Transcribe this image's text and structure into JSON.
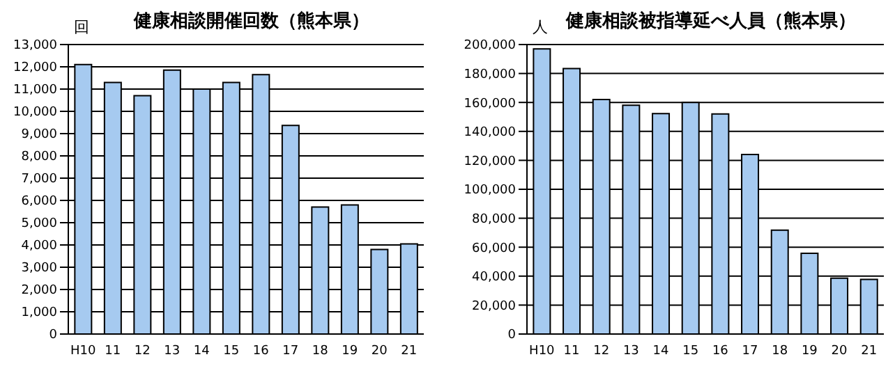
{
  "chart_data": [
    {
      "type": "bar",
      "title": "健康相談開催回数（熊本県）",
      "ylabel": "回",
      "categories": [
        "H10",
        "11",
        "12",
        "13",
        "14",
        "15",
        "16",
        "17",
        "18",
        "19",
        "20",
        "21"
      ],
      "values": [
        12100,
        11300,
        10700,
        11850,
        11000,
        11300,
        11650,
        9370,
        5700,
        5800,
        3800,
        4050
      ],
      "color": "#a6caf0",
      "ylim": [
        0,
        13000
      ],
      "yticks": [
        {
          "value": 0,
          "label": "0"
        },
        {
          "value": 1000,
          "label": "1,000"
        },
        {
          "value": 2000,
          "label": "2,000"
        },
        {
          "value": 3000,
          "label": "3,000"
        },
        {
          "value": 4000,
          "label": "4,000"
        },
        {
          "value": 5000,
          "label": "5,000"
        },
        {
          "value": 6000,
          "label": "6,000"
        },
        {
          "value": 7000,
          "label": "7,000"
        },
        {
          "value": 8000,
          "label": "8,000"
        },
        {
          "value": 9000,
          "label": "9,000"
        },
        {
          "value": 10000,
          "label": "10,000"
        },
        {
          "value": 11000,
          "label": "11,000"
        },
        {
          "value": 12000,
          "label": "12,000"
        },
        {
          "value": 13000,
          "label": "13,000"
        }
      ],
      "grid": "y",
      "legend": false
    },
    {
      "type": "bar",
      "title": "健康相談被指導延べ人員（熊本県）",
      "ylabel": "人",
      "categories": [
        "H10",
        "11",
        "12",
        "13",
        "14",
        "15",
        "16",
        "17",
        "18",
        "19",
        "20",
        "21"
      ],
      "values": [
        197000,
        183400,
        162000,
        158000,
        152300,
        160000,
        152000,
        124000,
        71800,
        55800,
        38600,
        37700
      ],
      "color": "#a6caf0",
      "ylim": [
        0,
        200000
      ],
      "yticks": [
        {
          "value": 0,
          "label": "0"
        },
        {
          "value": 20000,
          "label": "20,000"
        },
        {
          "value": 40000,
          "label": "40,000"
        },
        {
          "value": 60000,
          "label": "60,000"
        },
        {
          "value": 80000,
          "label": "80,000"
        },
        {
          "value": 100000,
          "label": "100,000"
        },
        {
          "value": 120000,
          "label": "120,000"
        },
        {
          "value": 140000,
          "label": "140,000"
        },
        {
          "value": 160000,
          "label": "160,000"
        },
        {
          "value": 180000,
          "label": "180,000"
        },
        {
          "value": 200000,
          "label": "200,000"
        }
      ],
      "grid": "y",
      "legend": false
    }
  ]
}
